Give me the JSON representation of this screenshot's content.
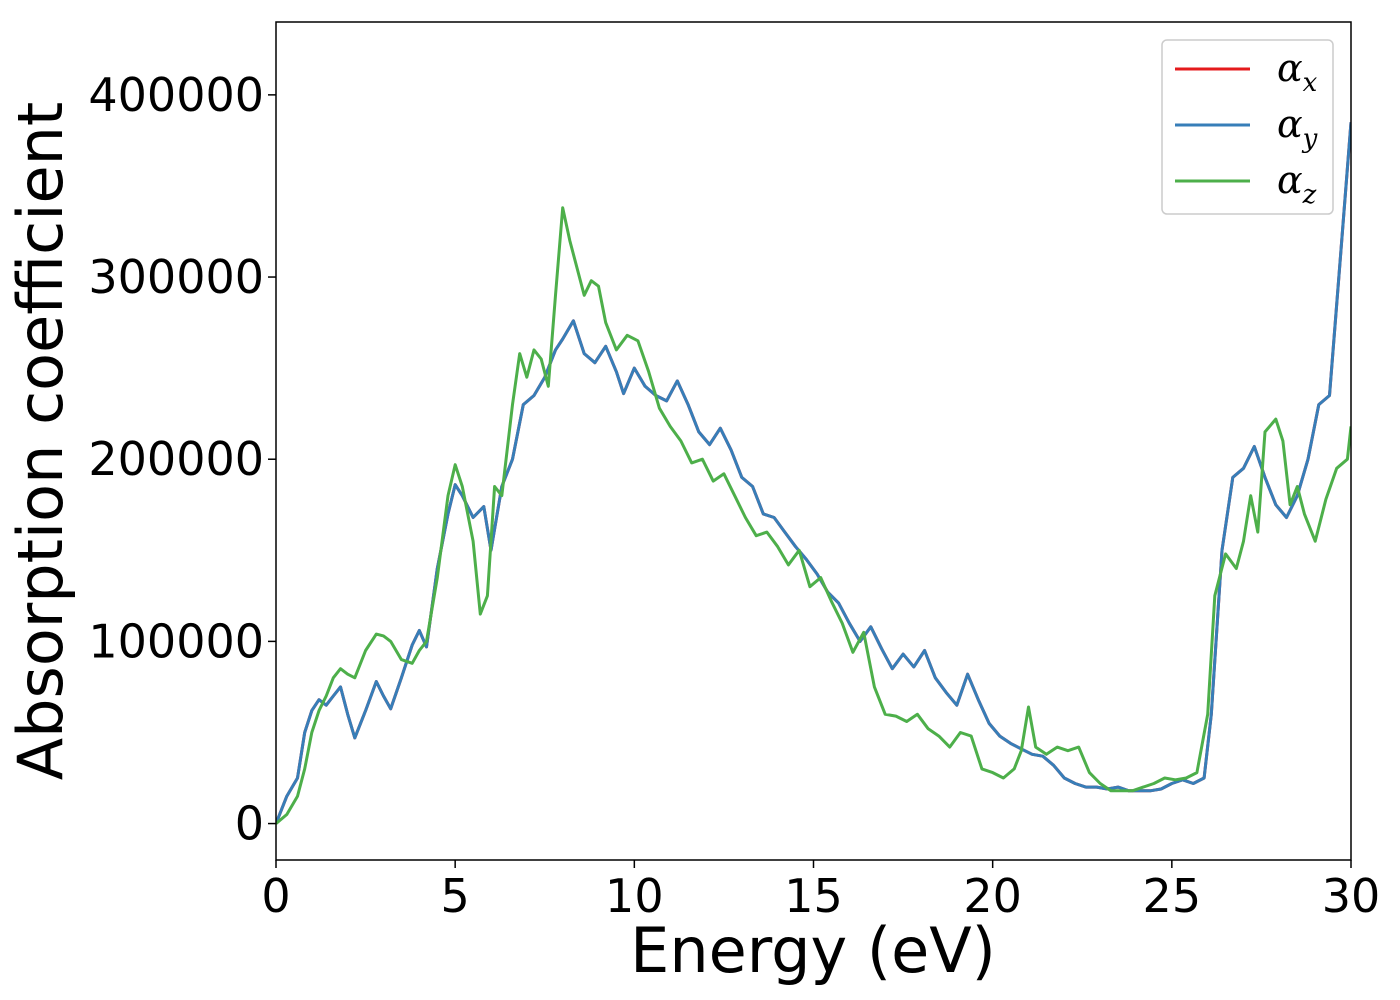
{
  "chart_data": {
    "type": "line",
    "xlabel": "Energy (eV)",
    "ylabel": "Absorption coefficient",
    "xlim": [
      0,
      30
    ],
    "ylim": [
      -20000,
      440000
    ],
    "xticks": [
      0,
      5,
      10,
      15,
      20,
      25,
      30
    ],
    "xtick_labels": [
      "0",
      "5",
      "10",
      "15",
      "20",
      "25",
      "30"
    ],
    "yticks": [
      0,
      100000,
      200000,
      300000,
      400000
    ],
    "ytick_labels": [
      "0",
      "100000",
      "200000",
      "300000",
      "400000"
    ],
    "grid": false,
    "legend_position": "top-right",
    "series": [
      {
        "name": "α",
        "subscript": "x",
        "color": "#e41a1c",
        "x": [
          0,
          0.3,
          0.6,
          0.8,
          1.0,
          1.2,
          1.4,
          1.6,
          1.8,
          2.0,
          2.2,
          2.5,
          2.8,
          3.0,
          3.2,
          3.5,
          3.8,
          4.0,
          4.2,
          4.5,
          4.8,
          5.0,
          5.2,
          5.5,
          5.8,
          6.0,
          6.3,
          6.6,
          6.9,
          7.2,
          7.5,
          7.8,
          8.0,
          8.3,
          8.6,
          8.9,
          9.2,
          9.5,
          9.7,
          10.0,
          10.3,
          10.6,
          10.9,
          11.2,
          11.5,
          11.8,
          12.1,
          12.4,
          12.7,
          13.0,
          13.3,
          13.6,
          13.9,
          14.2,
          14.5,
          14.8,
          15.1,
          15.4,
          15.7,
          16.0,
          16.3,
          16.6,
          16.9,
          17.2,
          17.5,
          17.8,
          18.1,
          18.4,
          18.7,
          19.0,
          19.3,
          19.6,
          19.9,
          20.2,
          20.5,
          20.8,
          21.1,
          21.4,
          21.7,
          22.0,
          22.3,
          22.6,
          22.9,
          23.2,
          23.5,
          23.8,
          24.1,
          24.4,
          24.7,
          25.0,
          25.3,
          25.6,
          25.9,
          26.1,
          26.4,
          26.7,
          27.0,
          27.3,
          27.6,
          27.9,
          28.2,
          28.5,
          28.8,
          29.1,
          29.4,
          29.7,
          30.0
        ],
        "values": [
          0,
          15000,
          25000,
          50000,
          62000,
          68000,
          65000,
          70000,
          75000,
          60000,
          47000,
          62000,
          78000,
          70000,
          63000,
          80000,
          98000,
          106000,
          97000,
          140000,
          170000,
          186000,
          180000,
          168000,
          174000,
          150000,
          185000,
          200000,
          230000,
          235000,
          245000,
          260000,
          266000,
          276000,
          258000,
          253000,
          262000,
          248000,
          236000,
          250000,
          240000,
          235000,
          232000,
          243000,
          230000,
          215000,
          208000,
          217000,
          205000,
          190000,
          185000,
          170000,
          168000,
          160000,
          152000,
          145000,
          137000,
          127000,
          121000,
          110000,
          100000,
          108000,
          96000,
          85000,
          93000,
          86000,
          95000,
          80000,
          72000,
          65000,
          82000,
          68000,
          55000,
          48000,
          44000,
          41000,
          38000,
          37000,
          32000,
          25000,
          22000,
          20000,
          20000,
          19000,
          20000,
          18000,
          18000,
          18000,
          19000,
          22000,
          24000,
          22000,
          25000,
          60000,
          150000,
          190000,
          195000,
          207000,
          190000,
          175000,
          168000,
          180000,
          200000,
          230000,
          235000,
          310000,
          385000
        ]
      },
      {
        "name": "α",
        "subscript": "y",
        "color": "#377eb8",
        "x": [
          0,
          0.3,
          0.6,
          0.8,
          1.0,
          1.2,
          1.4,
          1.6,
          1.8,
          2.0,
          2.2,
          2.5,
          2.8,
          3.0,
          3.2,
          3.5,
          3.8,
          4.0,
          4.2,
          4.5,
          4.8,
          5.0,
          5.2,
          5.5,
          5.8,
          6.0,
          6.3,
          6.6,
          6.9,
          7.2,
          7.5,
          7.8,
          8.0,
          8.3,
          8.6,
          8.9,
          9.2,
          9.5,
          9.7,
          10.0,
          10.3,
          10.6,
          10.9,
          11.2,
          11.5,
          11.8,
          12.1,
          12.4,
          12.7,
          13.0,
          13.3,
          13.6,
          13.9,
          14.2,
          14.5,
          14.8,
          15.1,
          15.4,
          15.7,
          16.0,
          16.3,
          16.6,
          16.9,
          17.2,
          17.5,
          17.8,
          18.1,
          18.4,
          18.7,
          19.0,
          19.3,
          19.6,
          19.9,
          20.2,
          20.5,
          20.8,
          21.1,
          21.4,
          21.7,
          22.0,
          22.3,
          22.6,
          22.9,
          23.2,
          23.5,
          23.8,
          24.1,
          24.4,
          24.7,
          25.0,
          25.3,
          25.6,
          25.9,
          26.1,
          26.4,
          26.7,
          27.0,
          27.3,
          27.6,
          27.9,
          28.2,
          28.5,
          28.8,
          29.1,
          29.4,
          29.7,
          30.0
        ],
        "values": [
          0,
          15000,
          25000,
          50000,
          62000,
          68000,
          65000,
          70000,
          75000,
          60000,
          47000,
          62000,
          78000,
          70000,
          63000,
          80000,
          98000,
          106000,
          97000,
          140000,
          170000,
          186000,
          180000,
          168000,
          174000,
          150000,
          185000,
          200000,
          230000,
          235000,
          245000,
          260000,
          266000,
          276000,
          258000,
          253000,
          262000,
          248000,
          236000,
          250000,
          240000,
          235000,
          232000,
          243000,
          230000,
          215000,
          208000,
          217000,
          205000,
          190000,
          185000,
          170000,
          168000,
          160000,
          152000,
          145000,
          137000,
          127000,
          121000,
          110000,
          100000,
          108000,
          96000,
          85000,
          93000,
          86000,
          95000,
          80000,
          72000,
          65000,
          82000,
          68000,
          55000,
          48000,
          44000,
          41000,
          38000,
          37000,
          32000,
          25000,
          22000,
          20000,
          20000,
          19000,
          20000,
          18000,
          18000,
          18000,
          19000,
          22000,
          24000,
          22000,
          25000,
          60000,
          150000,
          190000,
          195000,
          207000,
          190000,
          175000,
          168000,
          180000,
          200000,
          230000,
          235000,
          310000,
          385000
        ]
      },
      {
        "name": "α",
        "subscript": "z",
        "color": "#4daf4a",
        "x": [
          0,
          0.3,
          0.6,
          0.8,
          1.0,
          1.2,
          1.4,
          1.6,
          1.8,
          2.0,
          2.2,
          2.5,
          2.8,
          3.0,
          3.2,
          3.5,
          3.8,
          4.0,
          4.2,
          4.5,
          4.8,
          5.0,
          5.2,
          5.5,
          5.7,
          5.9,
          6.1,
          6.3,
          6.6,
          6.8,
          7.0,
          7.2,
          7.4,
          7.6,
          7.8,
          8.0,
          8.2,
          8.4,
          8.6,
          8.8,
          9.0,
          9.2,
          9.5,
          9.8,
          10.1,
          10.4,
          10.7,
          11.0,
          11.3,
          11.6,
          11.9,
          12.2,
          12.5,
          12.8,
          13.1,
          13.4,
          13.7,
          14.0,
          14.3,
          14.6,
          14.9,
          15.2,
          15.5,
          15.8,
          16.1,
          16.4,
          16.7,
          17.0,
          17.3,
          17.6,
          17.9,
          18.2,
          18.5,
          18.8,
          19.1,
          19.4,
          19.7,
          20.0,
          20.3,
          20.6,
          20.8,
          21.0,
          21.2,
          21.5,
          21.8,
          22.1,
          22.4,
          22.7,
          23.0,
          23.3,
          23.6,
          23.9,
          24.2,
          24.5,
          24.8,
          25.1,
          25.4,
          25.7,
          26.0,
          26.2,
          26.5,
          26.8,
          27.0,
          27.2,
          27.4,
          27.6,
          27.9,
          28.1,
          28.3,
          28.5,
          28.7,
          29.0,
          29.3,
          29.6,
          29.9,
          30.0
        ],
        "values": [
          0,
          5000,
          15000,
          30000,
          50000,
          62000,
          70000,
          80000,
          85000,
          82000,
          80000,
          95000,
          104000,
          103000,
          100000,
          90000,
          88000,
          95000,
          100000,
          135000,
          180000,
          197000,
          185000,
          155000,
          115000,
          125000,
          185000,
          180000,
          230000,
          258000,
          245000,
          260000,
          255000,
          240000,
          290000,
          338000,
          320000,
          305000,
          290000,
          298000,
          295000,
          275000,
          260000,
          268000,
          265000,
          248000,
          228000,
          218000,
          210000,
          198000,
          200000,
          188000,
          192000,
          180000,
          168000,
          158000,
          160000,
          152000,
          142000,
          150000,
          130000,
          135000,
          122000,
          110000,
          94000,
          105000,
          75000,
          60000,
          59000,
          56000,
          60000,
          52000,
          48000,
          42000,
          50000,
          48000,
          30000,
          28000,
          25000,
          30000,
          40000,
          64000,
          42000,
          38000,
          42000,
          40000,
          42000,
          28000,
          22000,
          18000,
          18000,
          18000,
          20000,
          22000,
          25000,
          24000,
          25000,
          28000,
          60000,
          125000,
          148000,
          140000,
          155000,
          180000,
          160000,
          215000,
          222000,
          210000,
          175000,
          185000,
          170000,
          155000,
          178000,
          195000,
          200000,
          218000
        ],
        "note": ""
      }
    ]
  }
}
